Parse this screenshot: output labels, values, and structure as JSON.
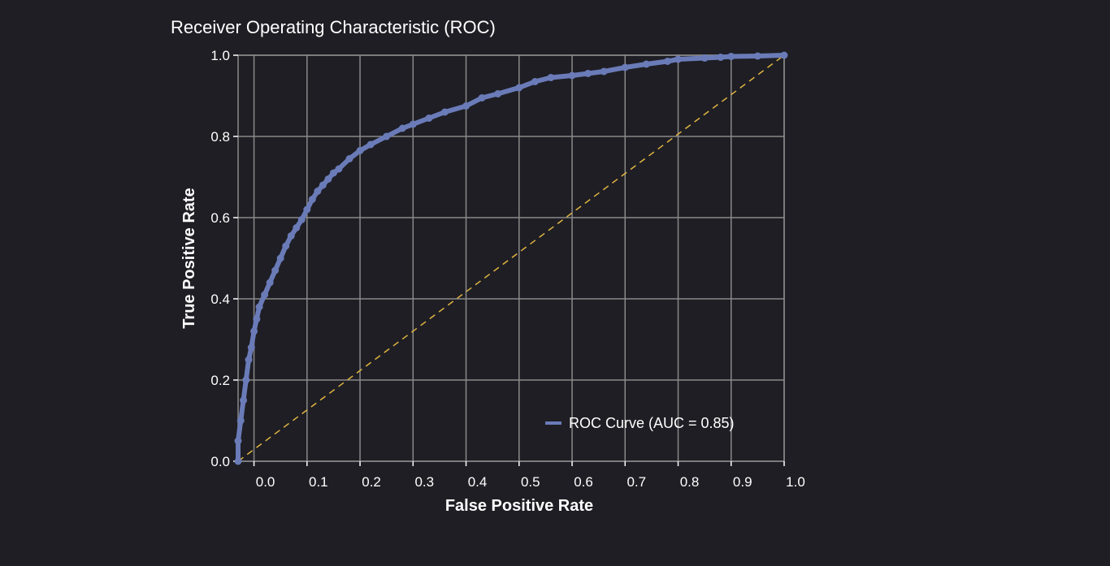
{
  "chart_data": {
    "type": "line",
    "title": "Receiver Operating Characteristic (ROC)",
    "xlabel": "False Positive Rate",
    "ylabel": "True Positive Rate",
    "xlim": [
      -0.03,
      1.0
    ],
    "ylim": [
      0.0,
      1.0
    ],
    "x_ticks": [
      {
        "value": 0.0,
        "label": "0.0"
      },
      {
        "value": 0.1,
        "label": "0.1"
      },
      {
        "value": 0.2,
        "label": "0.2"
      },
      {
        "value": 0.3,
        "label": "0.3"
      },
      {
        "value": 0.4,
        "label": "0.4"
      },
      {
        "value": 0.5,
        "label": "0.5"
      },
      {
        "value": 0.6,
        "label": "0.6"
      },
      {
        "value": 0.7,
        "label": "0.7"
      },
      {
        "value": 0.8,
        "label": "0.8"
      },
      {
        "value": 0.9,
        "label": "0.9"
      },
      {
        "value": 1.0,
        "label": "1.0"
      }
    ],
    "y_ticks": [
      {
        "value": 0.0,
        "label": "0.0"
      },
      {
        "value": 0.2,
        "label": "0.2"
      },
      {
        "value": 0.4,
        "label": "0.4"
      },
      {
        "value": 0.6,
        "label": "0.6"
      },
      {
        "value": 0.8,
        "label": "0.8"
      },
      {
        "value": 1.0,
        "label": "1.0"
      }
    ],
    "grid": true,
    "legend_position": "bottom-right",
    "series": [
      {
        "name": "ROC Curve (AUC = 0.85)",
        "color": "#6a7bb8",
        "style": "solid-with-markers",
        "x": [
          -0.03,
          -0.03,
          -0.025,
          -0.02,
          -0.015,
          -0.01,
          -0.005,
          0.0,
          0.005,
          0.01,
          0.02,
          0.03,
          0.04,
          0.05,
          0.06,
          0.07,
          0.08,
          0.09,
          0.1,
          0.11,
          0.12,
          0.13,
          0.14,
          0.15,
          0.16,
          0.18,
          0.2,
          0.22,
          0.25,
          0.28,
          0.3,
          0.33,
          0.36,
          0.4,
          0.43,
          0.46,
          0.5,
          0.53,
          0.56,
          0.6,
          0.63,
          0.66,
          0.7,
          0.74,
          0.78,
          0.8,
          0.85,
          0.88,
          0.9,
          0.95,
          1.0
        ],
        "y": [
          0.0,
          0.05,
          0.1,
          0.15,
          0.2,
          0.25,
          0.28,
          0.32,
          0.35,
          0.38,
          0.41,
          0.44,
          0.47,
          0.5,
          0.53,
          0.555,
          0.575,
          0.595,
          0.62,
          0.645,
          0.665,
          0.68,
          0.695,
          0.71,
          0.72,
          0.745,
          0.765,
          0.78,
          0.8,
          0.82,
          0.83,
          0.845,
          0.86,
          0.875,
          0.895,
          0.905,
          0.92,
          0.935,
          0.945,
          0.95,
          0.955,
          0.96,
          0.97,
          0.978,
          0.985,
          0.99,
          0.993,
          0.995,
          0.997,
          0.998,
          1.0
        ]
      },
      {
        "name": "",
        "color": "#e0b440",
        "style": "dashed",
        "x": [
          -0.03,
          1.0
        ],
        "y": [
          -0.03,
          1.0
        ]
      }
    ]
  }
}
